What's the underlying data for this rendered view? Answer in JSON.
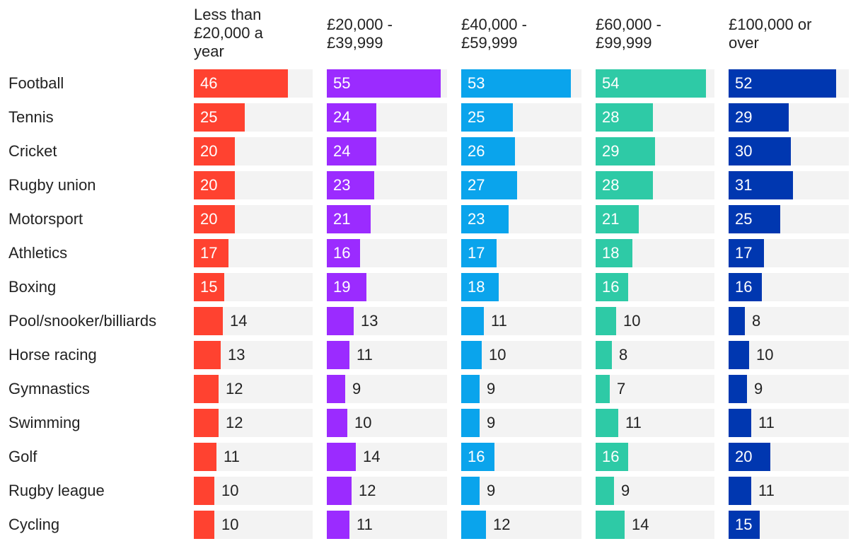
{
  "chart_data": {
    "type": "bar",
    "title": "",
    "xlabel": "",
    "ylabel": "",
    "xlim": [
      0,
      58
    ],
    "categories": [
      "Football",
      "Tennis",
      "Cricket",
      "Rugby union",
      "Motorsport",
      "Athletics",
      "Boxing",
      "Pool/snooker/billiards",
      "Horse racing",
      "Gymnastics",
      "Swimming",
      "Golf",
      "Rugby league",
      "Cycling"
    ],
    "series": [
      {
        "name": "Less than\n£20,000 a\nyear",
        "color": "#ff4230",
        "values": [
          46,
          25,
          20,
          20,
          20,
          17,
          15,
          14,
          13,
          12,
          12,
          11,
          10,
          10
        ]
      },
      {
        "name": "£20,000 -\n£39,999",
        "color": "#9b2bff",
        "values": [
          55,
          24,
          24,
          23,
          21,
          16,
          19,
          13,
          11,
          9,
          10,
          14,
          12,
          11
        ]
      },
      {
        "name": "£40,000 -\n£59,999",
        "color": "#0aa4ec",
        "values": [
          53,
          25,
          26,
          27,
          23,
          17,
          18,
          11,
          10,
          9,
          9,
          16,
          9,
          12
        ]
      },
      {
        "name": "£60,000 -\n£99,999",
        "color": "#2ecaa6",
        "values": [
          54,
          28,
          29,
          28,
          21,
          18,
          16,
          10,
          8,
          7,
          11,
          16,
          9,
          14
        ]
      },
      {
        "name": "£100,000 or\nover",
        "color": "#0037b0",
        "values": [
          52,
          29,
          30,
          31,
          25,
          17,
          16,
          8,
          10,
          9,
          11,
          20,
          11,
          15
        ]
      }
    ]
  }
}
